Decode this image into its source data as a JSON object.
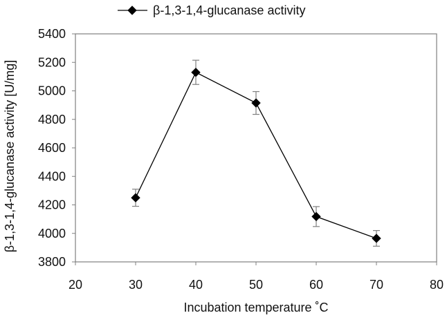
{
  "chart_data": {
    "type": "line",
    "title": "",
    "xlabel": "Incubation temperature ˚C",
    "ylabel": "β-1,3-1,4-glucanase activity [U/mg]",
    "xlim": [
      20,
      80
    ],
    "ylim": [
      3800,
      5400
    ],
    "xticks": [
      20,
      30,
      40,
      50,
      60,
      70,
      80
    ],
    "yticks": [
      3800,
      4000,
      4200,
      4400,
      4600,
      4800,
      5000,
      5200,
      5400
    ],
    "grid": false,
    "legend_position": "top-center",
    "series": [
      {
        "name": "β-1,3-1,4-glucanase  activity",
        "marker": "diamond",
        "color": "#000000",
        "points": [
          {
            "x": 30,
            "y": 4250,
            "err": 60
          },
          {
            "x": 40,
            "y": 5130,
            "err": 85
          },
          {
            "x": 50,
            "y": 4915,
            "err": 80
          },
          {
            "x": 60,
            "y": 4118,
            "err": 70
          },
          {
            "x": 70,
            "y": 3965,
            "err": 55
          }
        ]
      }
    ]
  },
  "colors": {
    "line": "#000000",
    "marker": "#000000",
    "error_bar": "#7f7f7f",
    "axis": "#7f7f7f"
  }
}
